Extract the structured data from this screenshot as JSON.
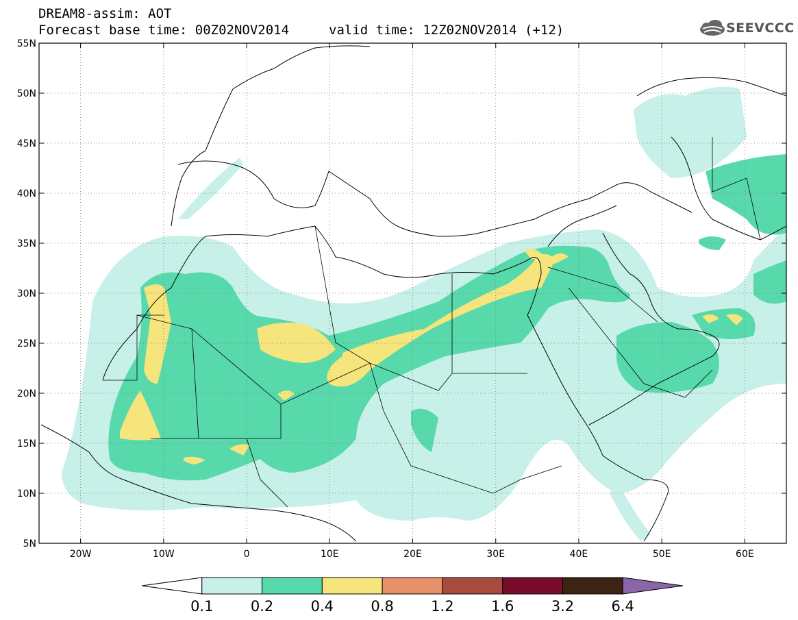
{
  "header": {
    "title": "DREAM8-assim: AOT",
    "base_time": "Forecast base time: 00Z02NOV2014",
    "valid_time": "valid time: 12Z02NOV2014 (+12)"
  },
  "logo": {
    "text": "SEEVCCC",
    "icon": "cloud-logo-icon"
  },
  "map": {
    "lon_range": [
      -25,
      65
    ],
    "lat_range": [
      5,
      55
    ],
    "lat_labels": [
      "55N",
      "50N",
      "45N",
      "40N",
      "35N",
      "30N",
      "25N",
      "20N",
      "15N",
      "10N",
      "5N"
    ],
    "lat_values": [
      55,
      50,
      45,
      40,
      35,
      30,
      25,
      20,
      15,
      10,
      5
    ],
    "lon_labels": [
      "20W",
      "10W",
      "0",
      "10E",
      "20E",
      "30E",
      "40E",
      "50E",
      "60E"
    ],
    "lon_values": [
      -20,
      -10,
      0,
      10,
      20,
      30,
      40,
      50,
      60
    ]
  },
  "colorbar": {
    "labels": [
      "0.1",
      "0.2",
      "0.4",
      "0.8",
      "1.2",
      "1.6",
      "3.2",
      "6.4"
    ],
    "colors": [
      "#ffffff",
      "#c6f0e8",
      "#58d9ac",
      "#f6e57c",
      "#e8906a",
      "#a84a3e",
      "#780c2a",
      "#3c2414",
      "#8a66a8"
    ]
  }
}
